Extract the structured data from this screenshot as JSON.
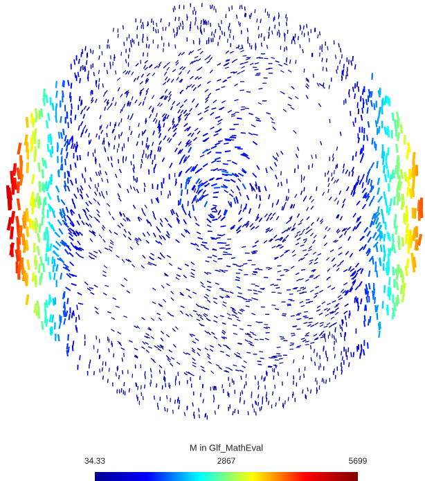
{
  "colorbar": {
    "title": "M in Glf_MathEval",
    "clim": [
      34.33,
      5699
    ],
    "ticks": [
      34.33,
      2867,
      5699
    ],
    "colormap": [
      "#00008f",
      "#0000ff",
      "#00ffff",
      "#ffff00",
      "#ff0000",
      "#800000"
    ]
  }
}
